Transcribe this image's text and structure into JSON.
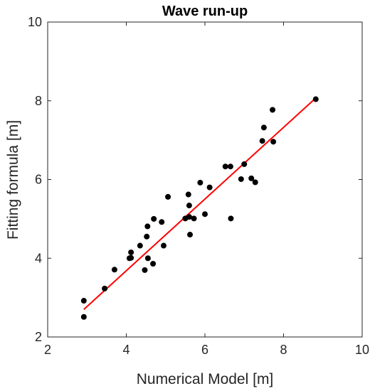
{
  "chart_data": {
    "type": "scatter",
    "title": "Wave run-up",
    "xlabel": "Numerical Model [m]",
    "ylabel": "Fitting formula [m]",
    "xlim": [
      2,
      10
    ],
    "ylim": [
      2,
      10
    ],
    "xticks": [
      "2",
      "4",
      "6",
      "8",
      "10"
    ],
    "yticks": [
      "2",
      "4",
      "6",
      "8",
      "10"
    ],
    "grid": false,
    "box": true,
    "series": [
      {
        "kind": "points",
        "color": "#000000",
        "x": [
          2.92,
          2.92,
          3.45,
          3.7,
          4.08,
          4.12,
          4.12,
          4.35,
          4.47,
          4.52,
          4.54,
          4.55,
          4.68,
          4.7,
          4.9,
          4.95,
          5.06,
          5.5,
          5.58,
          5.6,
          5.6,
          5.62,
          5.72,
          5.88,
          6.0,
          6.12,
          6.52,
          6.65,
          6.66,
          6.92,
          7.0,
          7.18,
          7.28,
          7.46,
          7.5,
          7.72,
          7.74,
          8.82
        ],
        "y": [
          2.51,
          2.92,
          3.23,
          3.71,
          4.0,
          4.01,
          4.15,
          4.32,
          3.7,
          4.55,
          4.81,
          4.0,
          3.86,
          5.0,
          4.92,
          4.32,
          5.56,
          5.01,
          5.62,
          5.34,
          5.05,
          4.6,
          5.01,
          5.92,
          5.12,
          5.8,
          6.33,
          6.33,
          5.01,
          6.01,
          6.39,
          6.03,
          5.93,
          6.98,
          7.32,
          7.77,
          6.96,
          8.04
        ]
      },
      {
        "kind": "line",
        "color": "#ff0000",
        "x": [
          2.92,
          8.82
        ],
        "y": [
          2.7,
          8.07
        ]
      }
    ]
  }
}
